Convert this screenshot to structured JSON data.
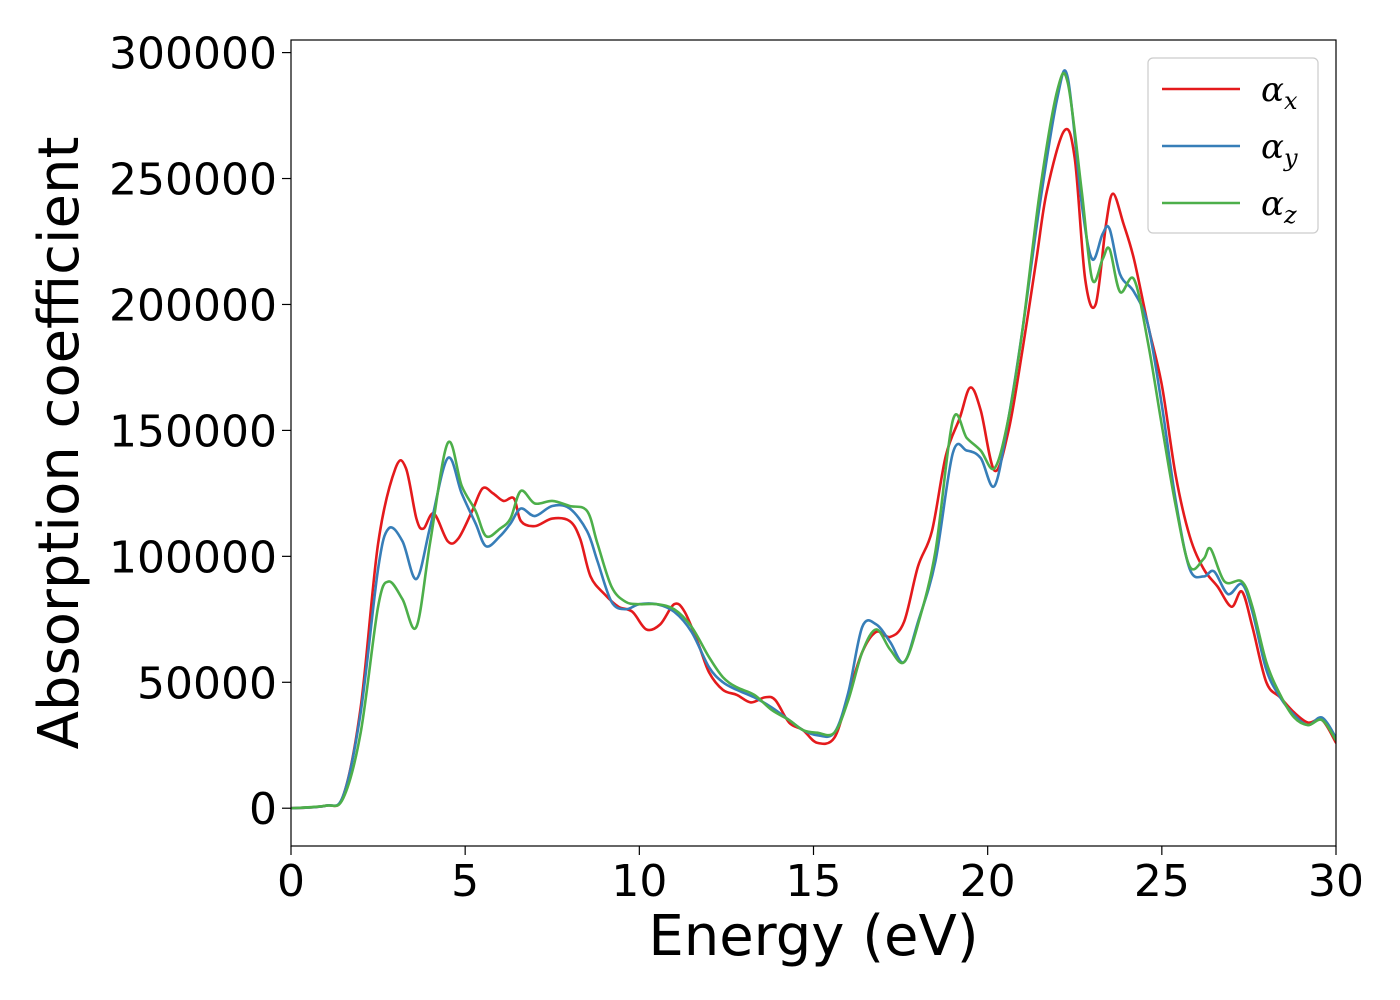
{
  "chart_data": {
    "type": "line",
    "title": "",
    "xlabel": "Energy (eV)",
    "ylabel": "Absorption coefficient",
    "xlim": [
      0,
      30
    ],
    "ylim": [
      -15000,
      305000
    ],
    "xticks": [
      0,
      5,
      10,
      15,
      20,
      25,
      30
    ],
    "xtick_labels": [
      "0",
      "5",
      "10",
      "15",
      "20",
      "25",
      "30"
    ],
    "yticks": [
      0,
      50000,
      100000,
      150000,
      200000,
      250000,
      300000
    ],
    "ytick_labels": [
      "0",
      "50000",
      "100000",
      "150000",
      "200000",
      "250000",
      "300000"
    ],
    "grid": false,
    "legend_position": "top-right",
    "series": [
      {
        "name": "α",
        "subscript": "x",
        "color": "#e41a1c",
        "points": [
          [
            0,
            0
          ],
          [
            1,
            1000
          ],
          [
            1.5,
            5000
          ],
          [
            2,
            40000
          ],
          [
            2.5,
            105000
          ],
          [
            3,
            135000
          ],
          [
            3.3,
            135000
          ],
          [
            3.6,
            115000
          ],
          [
            3.8,
            111000
          ],
          [
            4.1,
            117000
          ],
          [
            4.5,
            106000
          ],
          [
            4.8,
            107000
          ],
          [
            5.2,
            118000
          ],
          [
            5.5,
            127000
          ],
          [
            5.8,
            125000
          ],
          [
            6.1,
            122000
          ],
          [
            6.4,
            123000
          ],
          [
            6.6,
            114000
          ],
          [
            7,
            112000
          ],
          [
            7.5,
            115000
          ],
          [
            8,
            114000
          ],
          [
            8.3,
            107000
          ],
          [
            8.6,
            92000
          ],
          [
            9,
            85000
          ],
          [
            9.4,
            80000
          ],
          [
            9.8,
            78000
          ],
          [
            10.2,
            71000
          ],
          [
            10.6,
            73000
          ],
          [
            11,
            81000
          ],
          [
            11.3,
            78000
          ],
          [
            11.7,
            65000
          ],
          [
            12,
            54000
          ],
          [
            12.4,
            47000
          ],
          [
            12.8,
            45000
          ],
          [
            13.2,
            42000
          ],
          [
            13.6,
            44000
          ],
          [
            13.9,
            43000
          ],
          [
            14.3,
            34000
          ],
          [
            14.7,
            31000
          ],
          [
            15.1,
            26000
          ],
          [
            15.6,
            28000
          ],
          [
            16,
            45000
          ],
          [
            16.4,
            62000
          ],
          [
            16.8,
            70000
          ],
          [
            17.2,
            68000
          ],
          [
            17.6,
            74000
          ],
          [
            18,
            96000
          ],
          [
            18.4,
            110000
          ],
          [
            18.8,
            140000
          ],
          [
            19.2,
            155000
          ],
          [
            19.5,
            167000
          ],
          [
            19.8,
            158000
          ],
          [
            20.2,
            134000
          ],
          [
            20.6,
            150000
          ],
          [
            21,
            182000
          ],
          [
            21.4,
            218000
          ],
          [
            21.7,
            245000
          ],
          [
            22.2,
            269000
          ],
          [
            22.5,
            258000
          ],
          [
            22.8,
            210000
          ],
          [
            23.1,
            200000
          ],
          [
            23.4,
            232000
          ],
          [
            23.6,
            244000
          ],
          [
            23.9,
            232000
          ],
          [
            24.2,
            218000
          ],
          [
            24.6,
            192000
          ],
          [
            25,
            168000
          ],
          [
            25.4,
            132000
          ],
          [
            25.8,
            108000
          ],
          [
            26.2,
            95000
          ],
          [
            26.6,
            88000
          ],
          [
            27,
            80000
          ],
          [
            27.3,
            86000
          ],
          [
            27.6,
            72000
          ],
          [
            28,
            50000
          ],
          [
            28.4,
            44000
          ],
          [
            28.8,
            38000
          ],
          [
            29.2,
            34000
          ],
          [
            29.6,
            35000
          ],
          [
            30,
            26000
          ]
        ]
      },
      {
        "name": "α",
        "subscript": "y",
        "color": "#377eb8",
        "points": [
          [
            0,
            0
          ],
          [
            1,
            1000
          ],
          [
            1.5,
            5000
          ],
          [
            2,
            38000
          ],
          [
            2.5,
            95000
          ],
          [
            2.8,
            111000
          ],
          [
            3.2,
            106000
          ],
          [
            3.6,
            91000
          ],
          [
            4,
            112000
          ],
          [
            4.5,
            139000
          ],
          [
            4.9,
            125000
          ],
          [
            5.3,
            113000
          ],
          [
            5.6,
            104000
          ],
          [
            6,
            108000
          ],
          [
            6.3,
            113000
          ],
          [
            6.6,
            119000
          ],
          [
            7,
            116000
          ],
          [
            7.5,
            120000
          ],
          [
            8,
            119000
          ],
          [
            8.5,
            110000
          ],
          [
            8.8,
            98000
          ],
          [
            9.2,
            82000
          ],
          [
            9.6,
            79000
          ],
          [
            10,
            81000
          ],
          [
            10.5,
            81000
          ],
          [
            11,
            78000
          ],
          [
            11.5,
            70000
          ],
          [
            12,
            56000
          ],
          [
            12.4,
            50000
          ],
          [
            12.8,
            47000
          ],
          [
            13.3,
            44000
          ],
          [
            13.8,
            40000
          ],
          [
            14.3,
            35000
          ],
          [
            14.7,
            31000
          ],
          [
            15.1,
            29000
          ],
          [
            15.6,
            30000
          ],
          [
            16,
            46000
          ],
          [
            16.4,
            72000
          ],
          [
            16.8,
            73000
          ],
          [
            17.2,
            66000
          ],
          [
            17.6,
            58000
          ],
          [
            18,
            74000
          ],
          [
            18.5,
            98000
          ],
          [
            19,
            141000
          ],
          [
            19.4,
            142000
          ],
          [
            19.8,
            139000
          ],
          [
            20.2,
            128000
          ],
          [
            20.6,
            155000
          ],
          [
            21,
            190000
          ],
          [
            21.5,
            240000
          ],
          [
            22,
            282000
          ],
          [
            22.3,
            290000
          ],
          [
            22.7,
            240000
          ],
          [
            23,
            218000
          ],
          [
            23.3,
            228000
          ],
          [
            23.5,
            230000
          ],
          [
            23.8,
            212000
          ],
          [
            24.2,
            205000
          ],
          [
            24.6,
            192000
          ],
          [
            25,
            160000
          ],
          [
            25.4,
            122000
          ],
          [
            25.8,
            95000
          ],
          [
            26.2,
            92000
          ],
          [
            26.5,
            94000
          ],
          [
            26.9,
            85000
          ],
          [
            27.3,
            89000
          ],
          [
            27.6,
            78000
          ],
          [
            28,
            55000
          ],
          [
            28.4,
            44000
          ],
          [
            28.8,
            37000
          ],
          [
            29.2,
            33000
          ],
          [
            29.6,
            36000
          ],
          [
            30,
            28000
          ]
        ]
      },
      {
        "name": "α",
        "subscript": "z",
        "color": "#4daf4a",
        "points": [
          [
            0,
            0
          ],
          [
            1,
            1000
          ],
          [
            1.5,
            4000
          ],
          [
            2,
            30000
          ],
          [
            2.5,
            80000
          ],
          [
            2.8,
            90000
          ],
          [
            3.2,
            83000
          ],
          [
            3.6,
            72000
          ],
          [
            4,
            106000
          ],
          [
            4.5,
            145000
          ],
          [
            4.9,
            128000
          ],
          [
            5.3,
            118000
          ],
          [
            5.6,
            108000
          ],
          [
            6,
            111000
          ],
          [
            6.3,
            115000
          ],
          [
            6.6,
            126000
          ],
          [
            7,
            121000
          ],
          [
            7.5,
            122000
          ],
          [
            8,
            120000
          ],
          [
            8.5,
            118000
          ],
          [
            8.8,
            105000
          ],
          [
            9.2,
            88000
          ],
          [
            9.6,
            82000
          ],
          [
            10,
            81000
          ],
          [
            10.5,
            81000
          ],
          [
            11,
            79000
          ],
          [
            11.5,
            72000
          ],
          [
            12,
            60000
          ],
          [
            12.4,
            52000
          ],
          [
            12.8,
            48000
          ],
          [
            13.3,
            45000
          ],
          [
            13.8,
            39000
          ],
          [
            14.3,
            35000
          ],
          [
            14.7,
            31000
          ],
          [
            15.1,
            30000
          ],
          [
            15.6,
            30000
          ],
          [
            16,
            43000
          ],
          [
            16.4,
            62000
          ],
          [
            16.8,
            71000
          ],
          [
            17.2,
            63000
          ],
          [
            17.6,
            58000
          ],
          [
            18,
            73000
          ],
          [
            18.5,
            102000
          ],
          [
            19,
            154000
          ],
          [
            19.4,
            147000
          ],
          [
            19.8,
            142000
          ],
          [
            20.2,
            135000
          ],
          [
            20.6,
            155000
          ],
          [
            21,
            190000
          ],
          [
            21.5,
            245000
          ],
          [
            22,
            285000
          ],
          [
            22.3,
            288000
          ],
          [
            22.7,
            245000
          ],
          [
            23,
            210000
          ],
          [
            23.3,
            218000
          ],
          [
            23.5,
            222000
          ],
          [
            23.8,
            205000
          ],
          [
            24.2,
            210000
          ],
          [
            24.6,
            185000
          ],
          [
            25,
            152000
          ],
          [
            25.4,
            120000
          ],
          [
            25.8,
            96000
          ],
          [
            26.2,
            99000
          ],
          [
            26.4,
            103000
          ],
          [
            26.8,
            90000
          ],
          [
            27.3,
            90000
          ],
          [
            27.6,
            80000
          ],
          [
            28,
            58000
          ],
          [
            28.4,
            45000
          ],
          [
            28.8,
            36000
          ],
          [
            29.2,
            33000
          ],
          [
            29.6,
            35000
          ],
          [
            30,
            27000
          ]
        ]
      }
    ]
  }
}
